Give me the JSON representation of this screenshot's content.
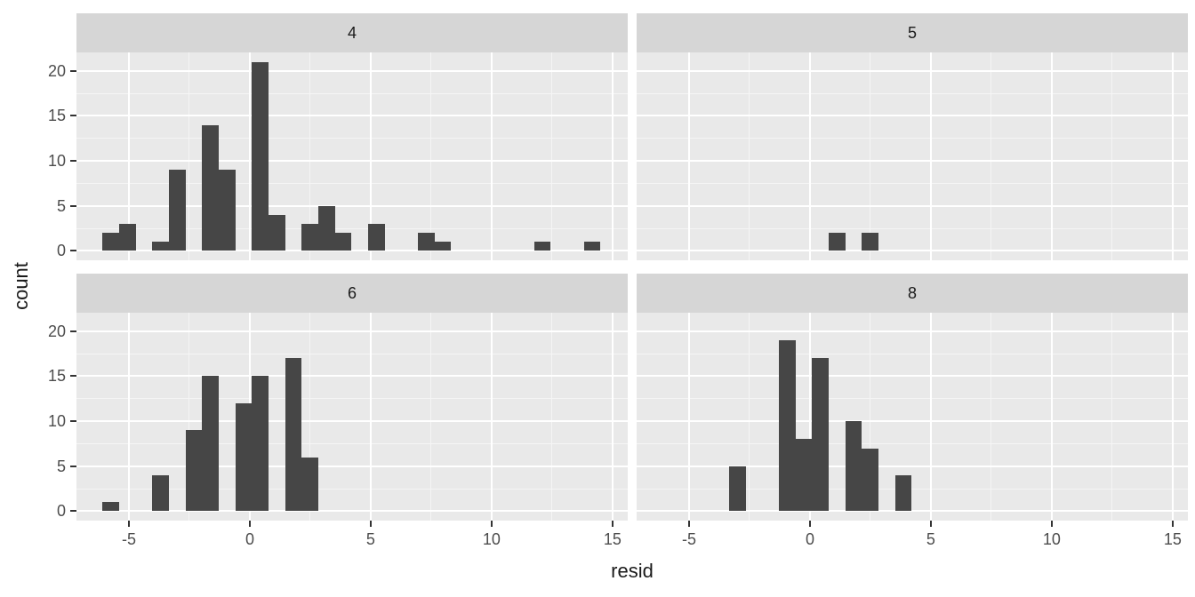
{
  "chart_data": {
    "type": "bar",
    "subtype": "faceted-histogram",
    "title": "",
    "xlabel": "resid",
    "ylabel": "count",
    "x_ticks": [
      -5,
      0,
      5,
      10,
      15
    ],
    "y_ticks": [
      0,
      5,
      10,
      15,
      20
    ],
    "x_minor_ticks": [
      -2.5,
      2.5,
      7.5,
      12.5
    ],
    "y_minor_ticks": [
      2.5,
      7.5,
      12.5,
      17.5
    ],
    "xlim": [
      -7.17,
      15.63
    ],
    "ylim": [
      -1.05,
      22.05
    ],
    "binwidth": 0.687,
    "grid": "major+minor",
    "legend": "none",
    "facets": [
      {
        "label": "4",
        "row": 0,
        "col": 0,
        "bars": [
          {
            "x": -6.1,
            "count": 2
          },
          {
            "x": -5.41,
            "count": 3
          },
          {
            "x": -4.04,
            "count": 1
          },
          {
            "x": -3.35,
            "count": 9
          },
          {
            "x": -1.98,
            "count": 14
          },
          {
            "x": -1.29,
            "count": 9
          },
          {
            "x": 0.09,
            "count": 21
          },
          {
            "x": 0.77,
            "count": 4
          },
          {
            "x": 2.15,
            "count": 3
          },
          {
            "x": 2.84,
            "count": 5
          },
          {
            "x": 3.52,
            "count": 2
          },
          {
            "x": 4.9,
            "count": 3
          },
          {
            "x": 6.96,
            "count": 2
          },
          {
            "x": 7.64,
            "count": 1
          },
          {
            "x": 11.76,
            "count": 1
          },
          {
            "x": 13.82,
            "count": 1
          }
        ]
      },
      {
        "label": "5",
        "row": 0,
        "col": 1,
        "bars": [
          {
            "x": 0.77,
            "count": 2
          },
          {
            "x": 2.15,
            "count": 2
          }
        ]
      },
      {
        "label": "6",
        "row": 1,
        "col": 0,
        "bars": [
          {
            "x": -6.1,
            "count": 1
          },
          {
            "x": -4.04,
            "count": 4
          },
          {
            "x": -2.66,
            "count": 9
          },
          {
            "x": -1.98,
            "count": 15
          },
          {
            "x": -0.6,
            "count": 12
          },
          {
            "x": 0.09,
            "count": 15
          },
          {
            "x": 1.46,
            "count": 17
          },
          {
            "x": 2.15,
            "count": 6
          }
        ]
      },
      {
        "label": "8",
        "row": 1,
        "col": 1,
        "bars": [
          {
            "x": -3.35,
            "count": 5
          },
          {
            "x": -1.29,
            "count": 19
          },
          {
            "x": -0.6,
            "count": 8
          },
          {
            "x": 0.09,
            "count": 17
          },
          {
            "x": 1.46,
            "count": 10
          },
          {
            "x": 2.15,
            "count": 7
          },
          {
            "x": 3.52,
            "count": 4
          }
        ]
      }
    ]
  },
  "colors": {
    "bar_fill": "#464646",
    "panel_bg": "#e9e9e9",
    "strip_bg": "#d6d6d6",
    "grid_major": "#ffffff",
    "grid_minor": "#f5f5f5",
    "tick_label": "#4d4d4d",
    "tick_mark": "#333333",
    "axis_title": "#1a1a1a",
    "strip_text": "#1a1a1a"
  }
}
